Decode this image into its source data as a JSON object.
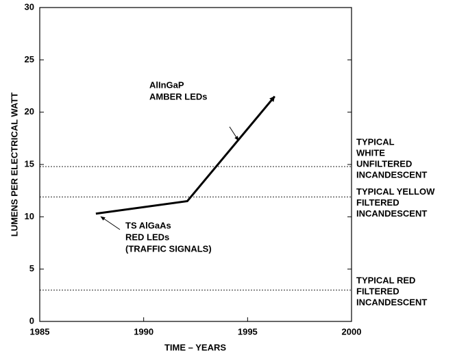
{
  "chart_data": {
    "type": "line",
    "x_label": "TIME – YEARS",
    "y_label": "LUMENS PER ELECTRICAL WATT",
    "xlim": [
      1985,
      2000
    ],
    "xticks": [
      1985,
      1990,
      1995,
      2000
    ],
    "ylim": [
      0,
      30
    ],
    "yticks": [
      0,
      5,
      10,
      15,
      20,
      25,
      30
    ],
    "series": [
      {
        "color": "#000000",
        "x": [
          1987.7,
          1992.1,
          1996.3
        ],
        "values": [
          10.3,
          11.5,
          21.5
        ]
      }
    ],
    "reference_lines": [
      {
        "value": 14.8,
        "label": [
          "TYPICAL",
          "WHITE",
          "UNFILTERED",
          "INCANDESCENT"
        ]
      },
      {
        "value": 11.9,
        "label": [
          "TYPICAL YELLOW",
          "FILTERED",
          "INCANDESCENT"
        ]
      },
      {
        "value": 3,
        "label": [
          "TYPICAL RED",
          "FILTERED",
          "INCANDESCENT"
        ]
      }
    ],
    "annotations": [
      {
        "lines": [
          "AlInGaP",
          "AMBER LEDs"
        ]
      },
      {
        "lines": [
          "TS AlGaAs",
          "RED LEDs",
          "(TRAFFIC  SIGNALS)"
        ]
      }
    ]
  }
}
